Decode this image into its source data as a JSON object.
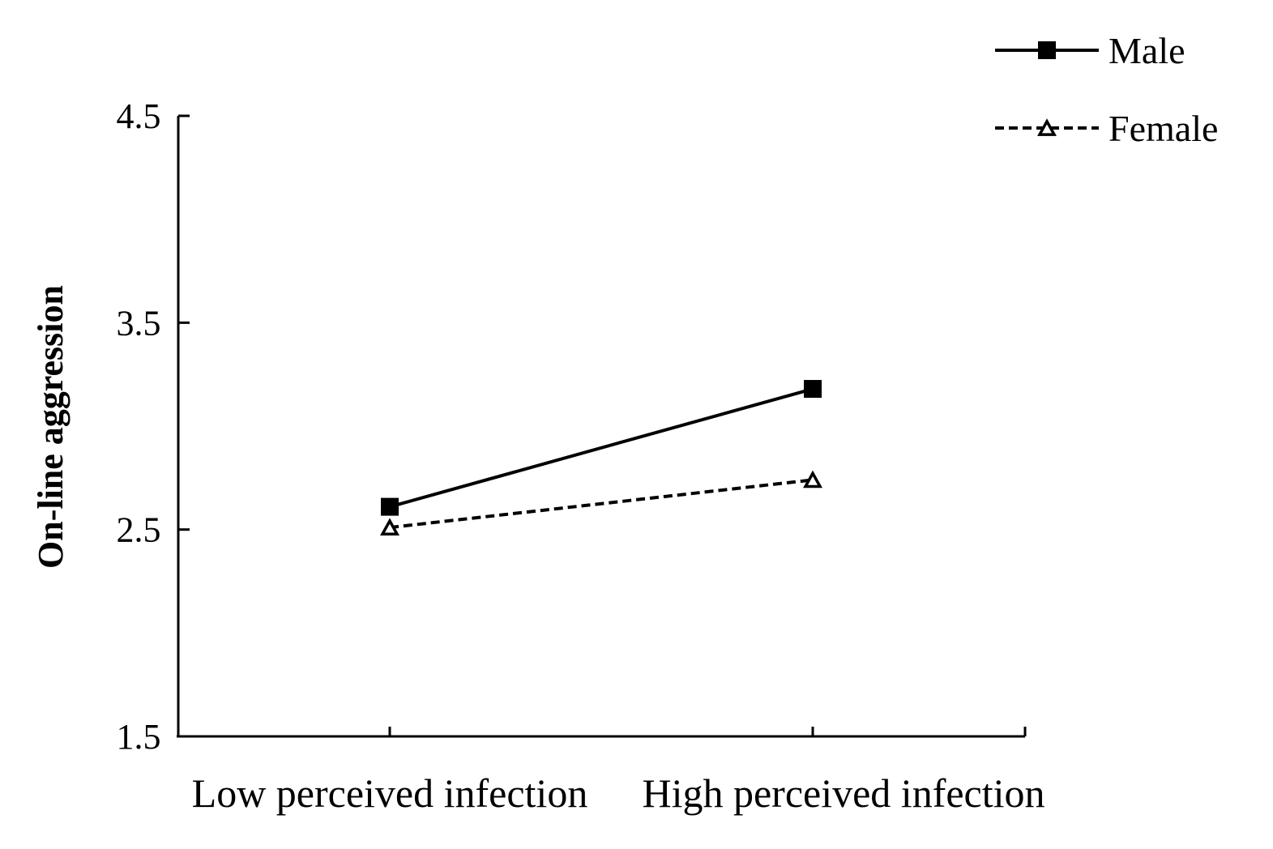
{
  "chart_data": {
    "type": "line",
    "xlabel": "",
    "ylabel": "On-line aggression",
    "categories": [
      "Low perceived infection",
      "High perceived infection"
    ],
    "ylim": [
      1.5,
      4.5
    ],
    "yticks": [
      "1.5",
      "2.5",
      "3.5",
      "4.5"
    ],
    "grid": false,
    "legend_position": "top-right",
    "series": [
      {
        "name": "Male",
        "values": [
          2.61,
          3.18
        ],
        "line_style": "solid",
        "marker": "filled-square",
        "color": "#000000"
      },
      {
        "name": "Female",
        "values": [
          2.51,
          2.74
        ],
        "line_style": "dashed",
        "marker": "open-triangle",
        "color": "#000000"
      }
    ]
  }
}
